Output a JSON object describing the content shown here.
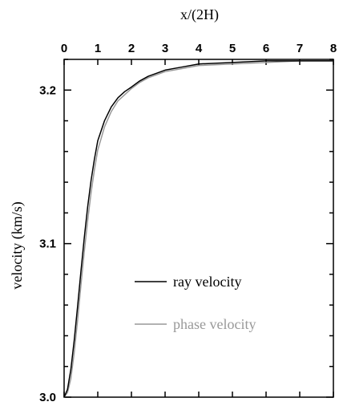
{
  "chart_data": {
    "type": "line",
    "xlabel": "x/(2H)",
    "ylabel": "velocity (km/s)",
    "xlim": [
      0,
      8
    ],
    "ylim": [
      3.0,
      3.22
    ],
    "x_ticks": [
      0,
      1,
      2,
      3,
      4,
      5,
      6,
      7,
      8
    ],
    "y_ticks": [
      3.0,
      3.1,
      3.2
    ],
    "y_tick_labels": [
      "3.0",
      "3.1",
      "3.2"
    ],
    "x_axis_position": "top",
    "grid": false,
    "legend_position": "center-right",
    "series": [
      {
        "name": "ray velocity",
        "color": "#000000",
        "x": [
          0,
          0.1,
          0.2,
          0.3,
          0.4,
          0.5,
          0.6,
          0.7,
          0.8,
          0.9,
          1.0,
          1.2,
          1.4,
          1.6,
          1.8,
          2.0,
          2.25,
          2.5,
          3.0,
          3.5,
          4.0,
          5.0,
          6.0,
          7.0,
          8.0
        ],
        "y": [
          3.0,
          3.005,
          3.018,
          3.037,
          3.059,
          3.082,
          3.104,
          3.124,
          3.141,
          3.155,
          3.167,
          3.18,
          3.189,
          3.195,
          3.199,
          3.202,
          3.206,
          3.209,
          3.213,
          3.215,
          3.217,
          3.218,
          3.219,
          3.219,
          3.219
        ]
      },
      {
        "name": "phase velocity",
        "color": "#999999",
        "x": [
          0,
          0.1,
          0.2,
          0.3,
          0.4,
          0.5,
          0.6,
          0.7,
          0.8,
          0.9,
          1.0,
          1.2,
          1.4,
          1.6,
          1.8,
          2.0,
          2.25,
          2.5,
          3.0,
          3.5,
          4.0,
          5.0,
          6.0,
          7.0,
          8.0
        ],
        "y": [
          3.0,
          3.003,
          3.012,
          3.029,
          3.05,
          3.073,
          3.095,
          3.115,
          3.133,
          3.148,
          3.161,
          3.176,
          3.186,
          3.193,
          3.197,
          3.201,
          3.205,
          3.208,
          3.212,
          3.214,
          3.216,
          3.217,
          3.218,
          3.219,
          3.219
        ]
      }
    ]
  }
}
